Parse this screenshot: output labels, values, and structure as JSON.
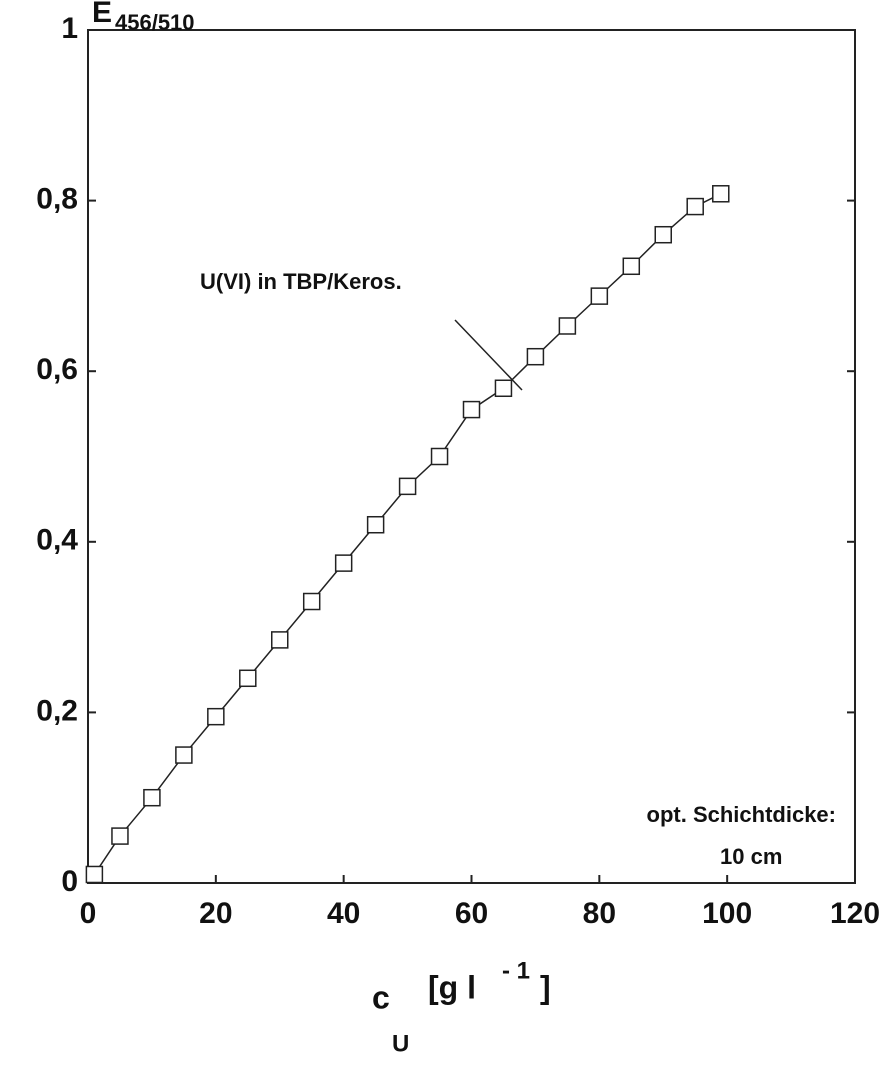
{
  "chart_data": {
    "type": "scatter",
    "y_label": "E",
    "y_label_sub": "456/510",
    "x_label": "c",
    "x_label_sub": "U",
    "x_label_unit": "[g l",
    "x_label_sup": "- 1",
    "x_label_close": "]",
    "annotation": "U(VI) in TBP/Keros.",
    "note_line1": "opt. Schichtdicke:",
    "note_line2": "10 cm",
    "x": [
      1,
      5,
      10,
      15,
      20,
      25,
      30,
      35,
      40,
      45,
      50,
      55,
      60,
      65,
      70,
      75,
      80,
      85,
      90,
      95,
      99
    ],
    "values": [
      0.01,
      0.055,
      0.1,
      0.15,
      0.195,
      0.24,
      0.285,
      0.33,
      0.375,
      0.42,
      0.465,
      0.5,
      0.555,
      0.58,
      0.617,
      0.653,
      0.688,
      0.723,
      0.76,
      0.793,
      0.808
    ],
    "color": "#222222",
    "xlim": [
      0,
      120
    ],
    "xticks": [
      0,
      20,
      40,
      60,
      80,
      100,
      120
    ],
    "ylim": [
      0,
      1
    ],
    "yticks": [
      0,
      {
        "value": 0.2,
        "label": "0,2"
      },
      {
        "value": 0.4,
        "label": "0,4"
      },
      {
        "value": 0.6,
        "label": "0,6"
      },
      {
        "value": 0.8,
        "label": "0,8"
      },
      1
    ]
  }
}
